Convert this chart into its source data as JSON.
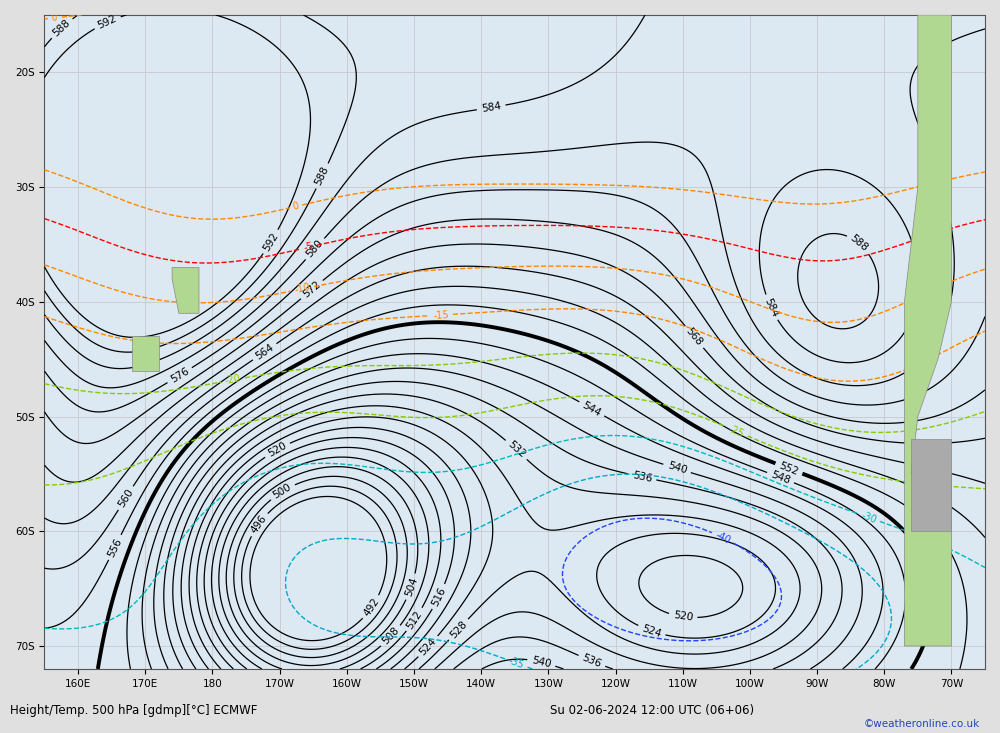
{
  "title_bottom": "Height/Temp. 500 hPa [gdmp][°C] ECMWF",
  "title_right": "Su 02-06-2024 12:00 UTC (06+06)",
  "credit": "©weatheronline.co.uk",
  "bg_color": "#e0e0e0",
  "ocean_color": "#dce8f0",
  "land_color": "#b8d8a0",
  "grid_color": "#bbbbbb",
  "z500_color": "#000000",
  "bold_level": 552,
  "figsize": [
    10.0,
    7.33
  ],
  "dpi": 100,
  "lon_min": 155,
  "lon_max": 295,
  "lat_min": -72,
  "lat_max": -15
}
